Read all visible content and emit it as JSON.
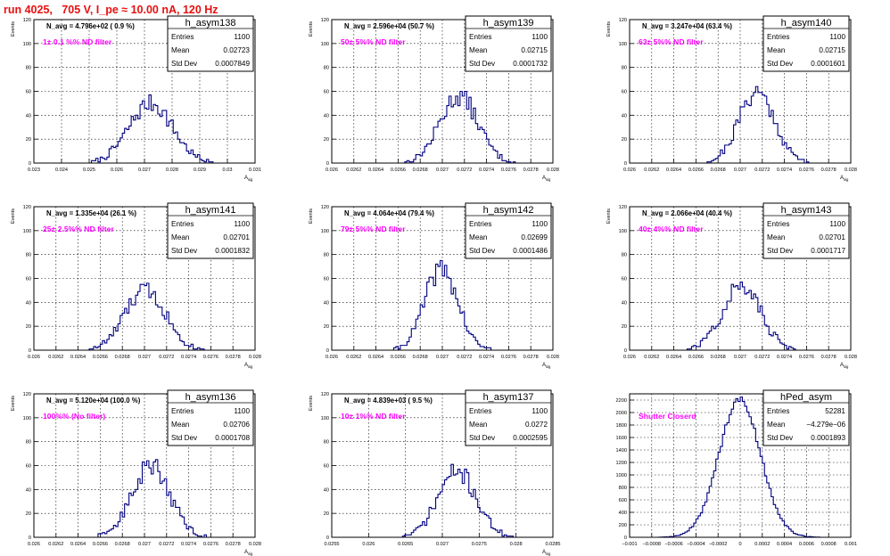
{
  "run_title": "run 4025,   705 V, I_pe ≈ 10.00 nA, 120 Hz",
  "colors": {
    "hist": "#000080",
    "annotation": "#ff00ff",
    "title": "#e81010"
  },
  "chart_data": [
    {
      "type": "bar",
      "name": "h_asym138",
      "nlabel": "N_avg = 4.796e+02 ( 0.9 %)",
      "filter": "1± 0.1 %% ND filter",
      "stats": {
        "entries_label": "Entries",
        "entries": "1100",
        "mean_label": "Mean",
        "mean": "0.02723",
        "std_label": "Std Dev",
        "std": "0.0007849"
      },
      "xlim": [
        0.023,
        0.031
      ],
      "ylim": [
        0,
        120
      ],
      "xticks": [
        "0.023",
        "0.024",
        "0.025",
        "0.026",
        "0.027",
        "0.028",
        "0.029",
        "0.03",
        "0.031"
      ],
      "yticks": [
        "0",
        "20",
        "40",
        "60",
        "80",
        "100",
        "120"
      ],
      "xlabel": "A_sig",
      "ylabel": "Events",
      "center": 0.02723,
      "sigma": 0.0007849,
      "peak": 50,
      "seed": 7
    },
    {
      "type": "bar",
      "name": "h_asym139",
      "nlabel": "N_avg = 2.596e+04 (50.7 %)",
      "filter": "50± 5%% ND filter",
      "stats": {
        "entries_label": "Entries",
        "entries": "1100",
        "mean_label": "Mean",
        "mean": "0.02715",
        "std_label": "Std Dev",
        "std": "0.0001732"
      },
      "xlim": [
        0.026,
        0.028
      ],
      "ylim": [
        0,
        120
      ],
      "xticks": [
        "0.026",
        "0.0262",
        "0.0264",
        "0.0266",
        "0.0268",
        "0.027",
        "0.0272",
        "0.0274",
        "0.0276",
        "0.0278",
        "0.028"
      ],
      "yticks": [
        "0",
        "20",
        "40",
        "60",
        "80",
        "100",
        "120"
      ],
      "xlabel": "A_sig",
      "ylabel": "Events",
      "center": 0.02715,
      "sigma": 0.0001732,
      "peak": 56,
      "seed": 13
    },
    {
      "type": "bar",
      "name": "h_asym140",
      "nlabel": "N_avg = 3.247e+04 (63.4 %)",
      "filter": "63± 5%% ND filter",
      "stats": {
        "entries_label": "Entries",
        "entries": "1100",
        "mean_label": "Mean",
        "mean": "0.02715",
        "std_label": "Std Dev",
        "std": "0.0001601"
      },
      "xlim": [
        0.026,
        0.028
      ],
      "ylim": [
        0,
        120
      ],
      "xticks": [
        "0.026",
        "0.0262",
        "0.0264",
        "0.0266",
        "0.0268",
        "0.027",
        "0.0272",
        "0.0274",
        "0.0276",
        "0.0278",
        "0.028"
      ],
      "yticks": [
        "0",
        "20",
        "40",
        "60",
        "80",
        "100",
        "120"
      ],
      "xlabel": "A_sig",
      "ylabel": "Events",
      "center": 0.02715,
      "sigma": 0.0001601,
      "peak": 60,
      "seed": 21
    },
    {
      "type": "bar",
      "name": "h_asym141",
      "nlabel": "N_avg = 1.335e+04 (26.1 %)",
      "filter": "25± 2.5%% ND filter",
      "stats": {
        "entries_label": "Entries",
        "entries": "1100",
        "mean_label": "Mean",
        "mean": "0.02701",
        "std_label": "Std Dev",
        "std": "0.0001832"
      },
      "xlim": [
        0.026,
        0.028
      ],
      "ylim": [
        0,
        120
      ],
      "xticks": [
        "0.026",
        "0.0262",
        "0.0264",
        "0.0266",
        "0.0268",
        "0.027",
        "0.0272",
        "0.0274",
        "0.0276",
        "0.0278",
        "0.028"
      ],
      "yticks": [
        "0",
        "20",
        "40",
        "60",
        "80",
        "100",
        "120"
      ],
      "xlabel": "A_sig",
      "ylabel": "Events",
      "center": 0.02701,
      "sigma": 0.0001832,
      "peak": 50,
      "seed": 33
    },
    {
      "type": "bar",
      "name": "h_asym142",
      "nlabel": "N_avg = 4.064e+04 (79.4 %)",
      "filter": "79± 5%% ND filter",
      "stats": {
        "entries_label": "Entries",
        "entries": "1100",
        "mean_label": "Mean",
        "mean": "0.02699",
        "std_label": "Std Dev",
        "std": "0.0001486"
      },
      "xlim": [
        0.026,
        0.028
      ],
      "ylim": [
        0,
        120
      ],
      "xticks": [
        "0.026",
        "0.0262",
        "0.0264",
        "0.0266",
        "0.0268",
        "0.027",
        "0.0272",
        "0.0274",
        "0.0276",
        "0.0278",
        "0.028"
      ],
      "yticks": [
        "0",
        "20",
        "40",
        "60",
        "80",
        "100",
        "120"
      ],
      "xlabel": "A_sig",
      "ylabel": "Events",
      "center": 0.02699,
      "sigma": 0.0001486,
      "peak": 68,
      "seed": 41
    },
    {
      "type": "bar",
      "name": "h_asym143",
      "nlabel": "N_avg = 2.066e+04 (40.4 %)",
      "filter": "40± 4%% ND filter",
      "stats": {
        "entries_label": "Entries",
        "entries": "1100",
        "mean_label": "Mean",
        "mean": "0.02701",
        "std_label": "Std Dev",
        "std": "0.0001717"
      },
      "xlim": [
        0.026,
        0.028
      ],
      "ylim": [
        0,
        120
      ],
      "xticks": [
        "0.026",
        "0.0262",
        "0.0264",
        "0.0266",
        "0.0268",
        "0.027",
        "0.0272",
        "0.0274",
        "0.0276",
        "0.0278",
        "0.028"
      ],
      "yticks": [
        "0",
        "20",
        "40",
        "60",
        "80",
        "100",
        "120"
      ],
      "xlabel": "A_sig",
      "ylabel": "Events",
      "center": 0.02701,
      "sigma": 0.0001717,
      "peak": 54,
      "seed": 57
    },
    {
      "type": "bar",
      "name": "h_asym136",
      "nlabel": "N_avg = 5.120e+04 (100.0 %)",
      "filter": "100%% (No filter)",
      "stats": {
        "entries_label": "Entries",
        "entries": "1100",
        "mean_label": "Mean",
        "mean": "0.02706",
        "std_label": "Std Dev",
        "std": "0.0001708"
      },
      "xlim": [
        0.026,
        0.028
      ],
      "ylim": [
        0,
        120
      ],
      "xticks": [
        "0.026",
        "0.0262",
        "0.0264",
        "0.0266",
        "0.0268",
        "0.027",
        "0.0272",
        "0.0274",
        "0.0276",
        "0.0278",
        "0.028"
      ],
      "yticks": [
        "0",
        "20",
        "40",
        "60",
        "80",
        "100",
        "120"
      ],
      "xlabel": "A_sig",
      "ylabel": "Events",
      "center": 0.02706,
      "sigma": 0.0001708,
      "peak": 60,
      "seed": 63
    },
    {
      "type": "bar",
      "name": "h_asym137",
      "nlabel": "N_avg = 4.839e+03 ( 9.5 %)",
      "filter": "10± 1%% ND filter",
      "stats": {
        "entries_label": "Entries",
        "entries": "1100",
        "mean_label": "Mean",
        "mean": "0.0272",
        "std_label": "Std Dev",
        "std": "0.0002595"
      },
      "xlim": [
        0.0255,
        0.0285
      ],
      "ylim": [
        0,
        120
      ],
      "xticks": [
        "0.0255",
        "0.026",
        "0.0265",
        "0.027",
        "0.0275",
        "0.028",
        "0.0285"
      ],
      "yticks": [
        "0",
        "20",
        "40",
        "60",
        "80",
        "100",
        "120"
      ],
      "xlabel": "A_sig",
      "ylabel": "Events",
      "center": 0.0272,
      "sigma": 0.0002595,
      "peak": 55,
      "seed": 71
    },
    {
      "type": "bar",
      "name": "hPed_asym",
      "nlabel": "",
      "filter": "Shutter Closerd",
      "stats": {
        "entries_label": "Entries",
        "entries": "52281",
        "mean_label": "Mean",
        "mean": "−4.279e−06",
        "std_label": "Std Dev",
        "std": "0.0001893"
      },
      "xlim": [
        -0.001,
        0.001
      ],
      "ylim": [
        0,
        2300
      ],
      "xticks": [
        "−0.001",
        "−0.0008",
        "−0.0006",
        "−0.0004",
        "−0.0002",
        "0",
        "0.0002",
        "0.0004",
        "0.0006",
        "0.0008",
        "0.001"
      ],
      "yticks": [
        "0",
        "200",
        "400",
        "600",
        "800",
        "1000",
        "1200",
        "1400",
        "1600",
        "1800",
        "2000",
        "2200"
      ],
      "xlabel": "",
      "ylabel": "",
      "center": -4.279e-06,
      "sigma": 0.0001893,
      "peak": 2200,
      "seed": 89
    }
  ]
}
